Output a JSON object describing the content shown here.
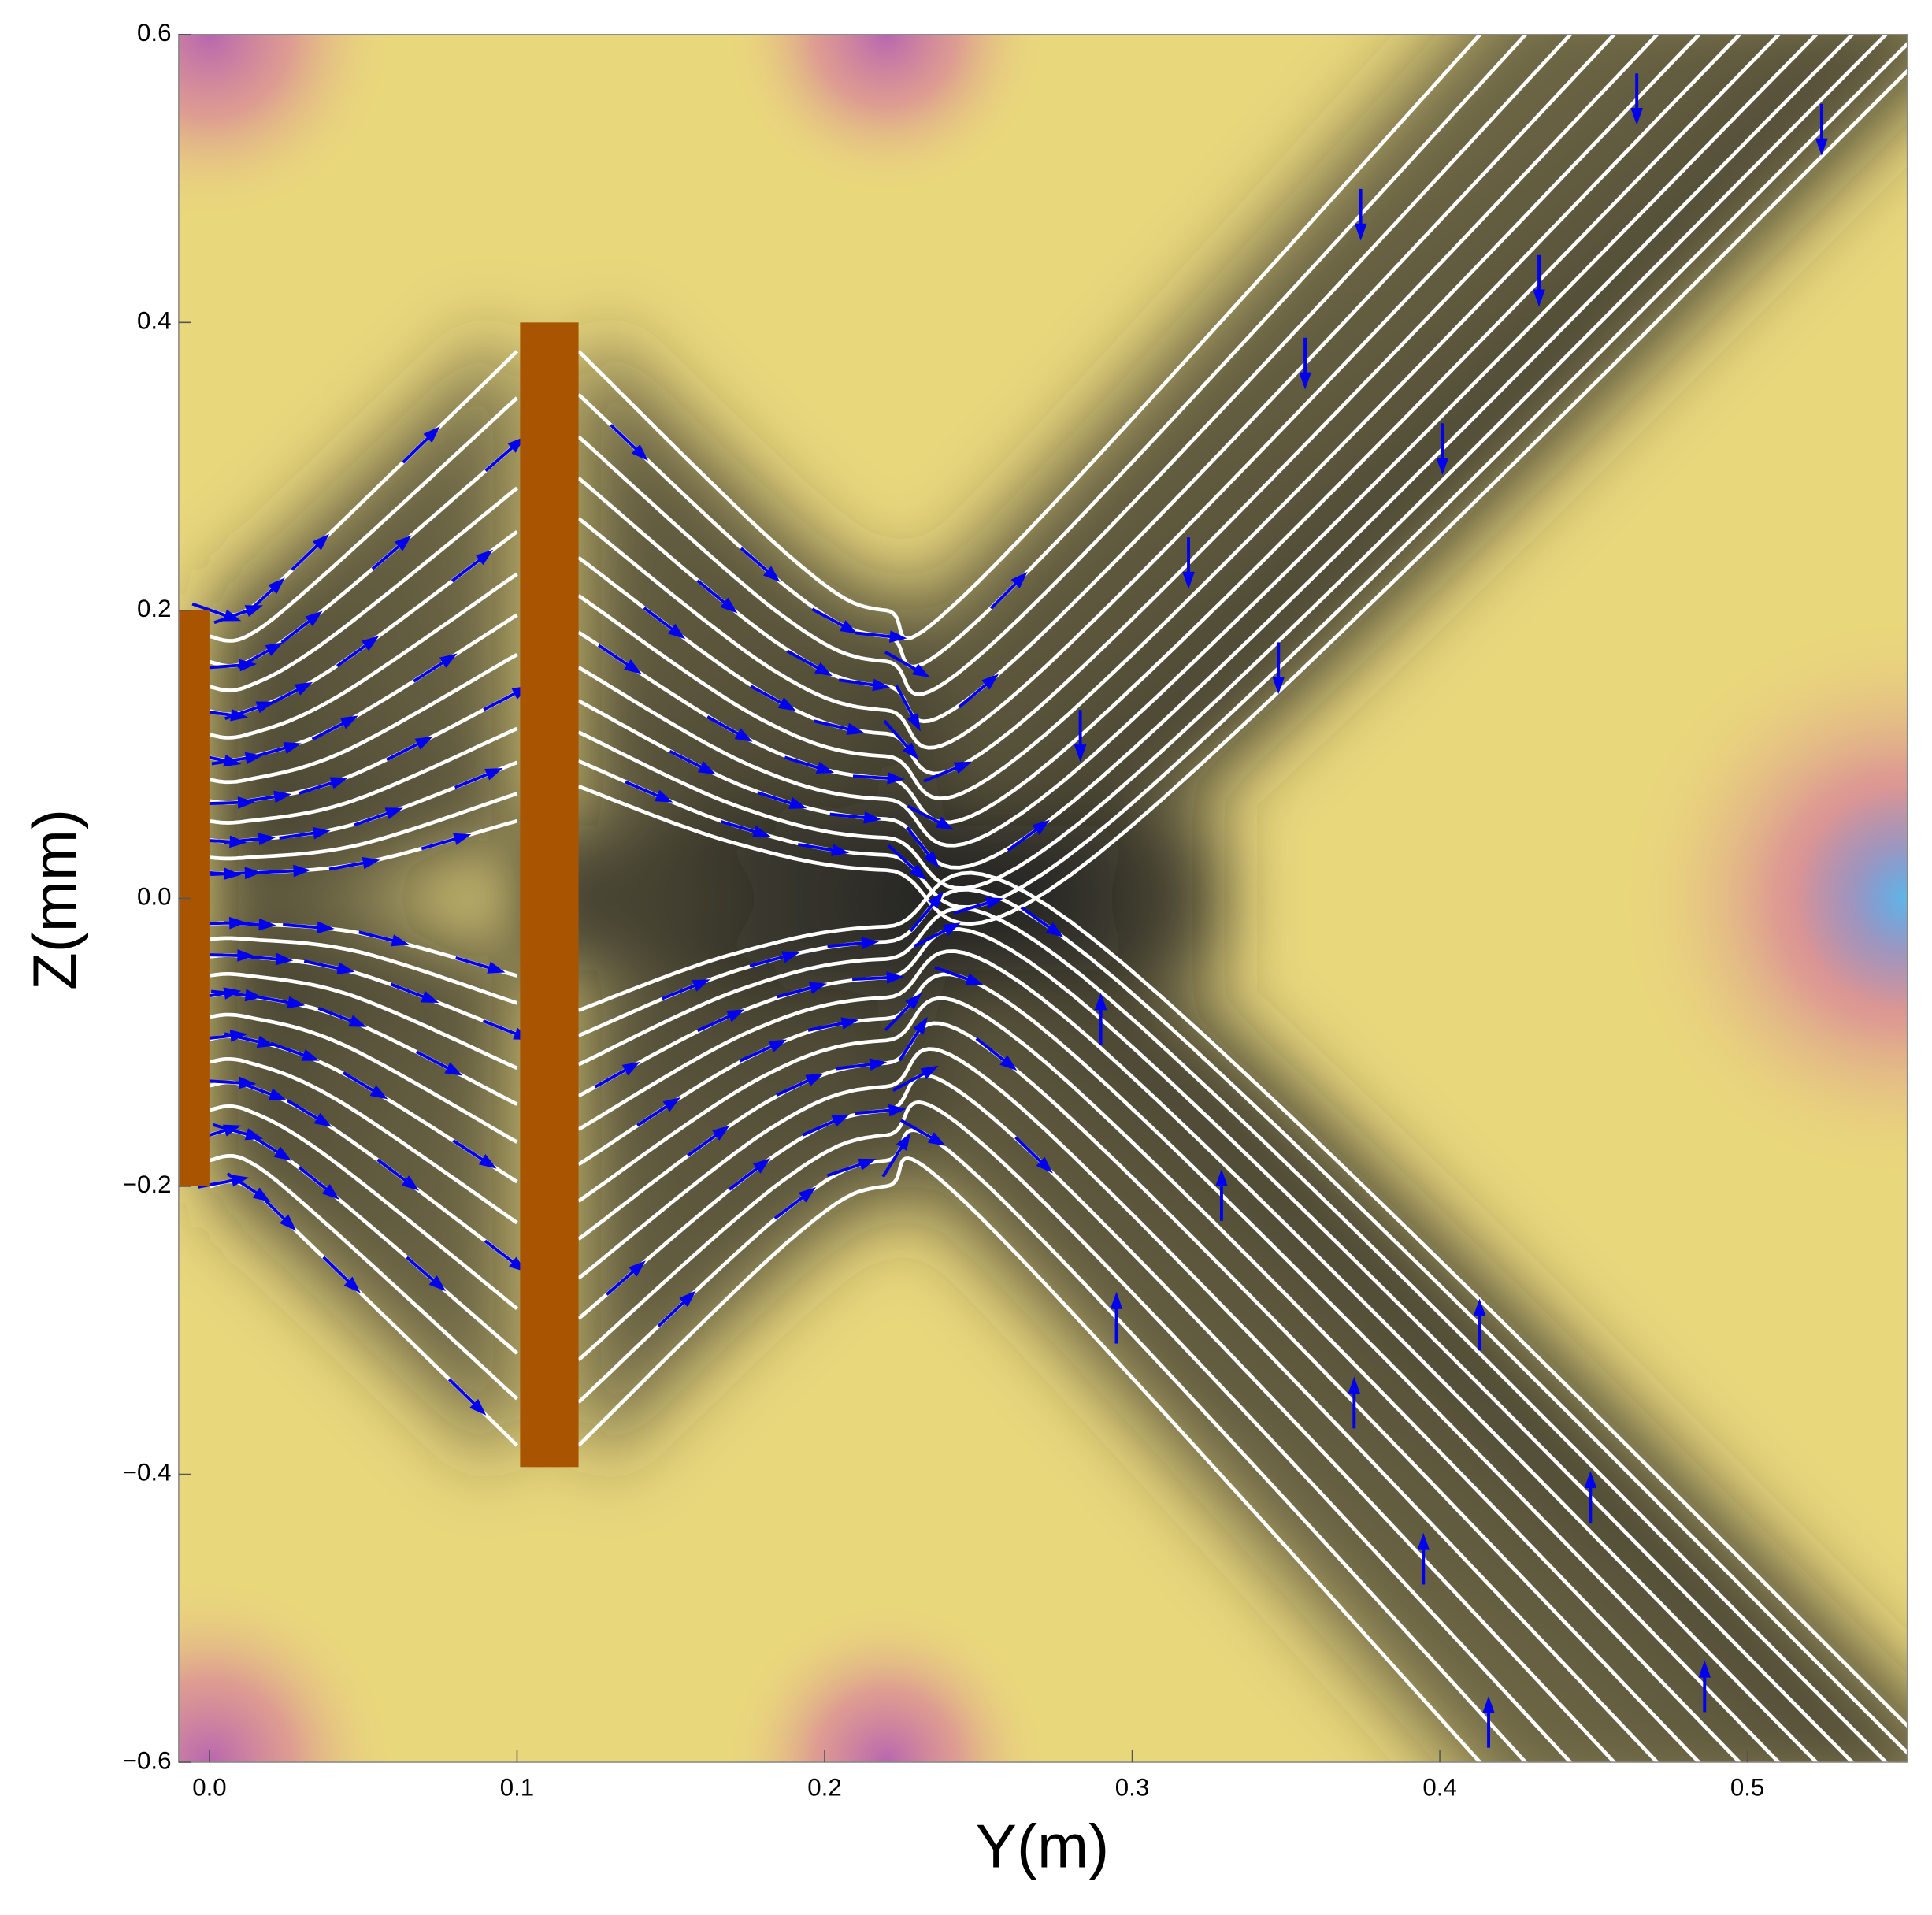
{
  "chart_data": {
    "type": "stream",
    "x_label": "Y(m)",
    "y_label": "Z(mm)",
    "xlim": [
      -0.01,
      0.552
    ],
    "ylim": [
      -0.6,
      0.6
    ],
    "xticks": [
      {
        "value": 0,
        "label": "0.0"
      },
      0.1,
      0.2,
      0.3,
      0.4,
      0.5
    ],
    "yticks": [
      {
        "value": -0.6,
        "label": "−0.6"
      },
      {
        "value": -0.4,
        "label": "−0.4"
      },
      {
        "value": -0.2,
        "label": "−0.2"
      },
      {
        "value": 0,
        "label": "0.0"
      },
      0.2,
      0.4,
      0.6
    ],
    "electrodes": [
      {
        "x": [
          -0.01,
          0
        ],
        "z": [
          -0.2,
          0.2
        ]
      },
      {
        "x": [
          0.101,
          0.12
        ],
        "z": [
          -0.395,
          0.4
        ]
      }
    ],
    "electrode_color": "#a85400",
    "streamline_color": "#ffffff",
    "arrow_color": "#0000ee"
  }
}
